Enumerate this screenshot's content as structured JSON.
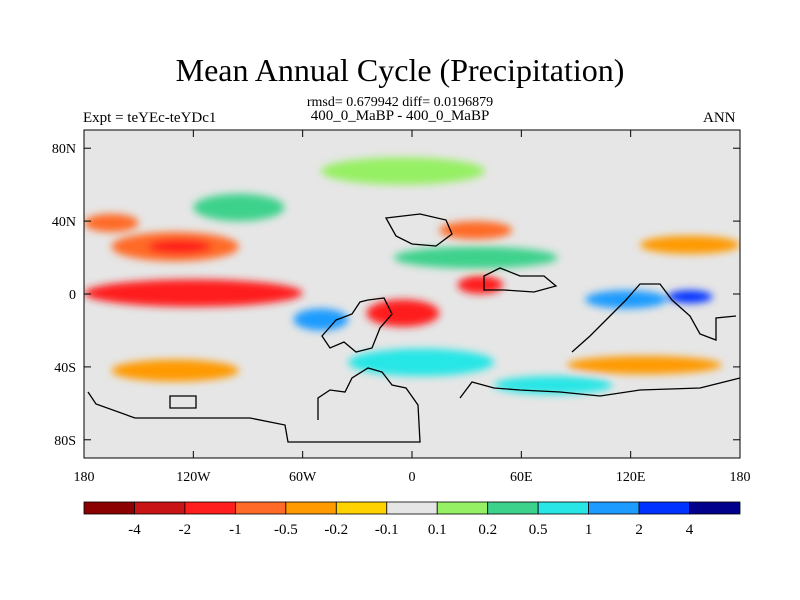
{
  "header": {
    "title": "Mean Annual Cycle (Precipitation)",
    "stats": "rmsd= 0.679942 diff= 0.0196879",
    "left_label": "Expt = teYEc-teYDc1",
    "center_label": "400_0_MaBP - 400_0_MaBP",
    "right_label": "ANN"
  },
  "chart_data": {
    "type": "heatmap",
    "title": "Mean Annual Cycle (Precipitation)",
    "xlabel": "",
    "ylabel": "",
    "xlim": [
      -180,
      180
    ],
    "ylim": [
      -90,
      90
    ],
    "x_ticks": [
      {
        "value": -180,
        "label": "180"
      },
      {
        "value": -120,
        "label": "120W"
      },
      {
        "value": -60,
        "label": "60W"
      },
      {
        "value": 0,
        "label": "0"
      },
      {
        "value": 60,
        "label": "60E"
      },
      {
        "value": 120,
        "label": "120E"
      },
      {
        "value": 180,
        "label": "180"
      }
    ],
    "y_ticks": [
      {
        "value": 80,
        "label": "80N"
      },
      {
        "value": 40,
        "label": "40N"
      },
      {
        "value": 0,
        "label": "0"
      },
      {
        "value": -40,
        "label": "40S"
      },
      {
        "value": -80,
        "label": "80S"
      }
    ],
    "colorbar": {
      "levels": [
        "-4",
        "-2",
        "-1",
        "-0.5",
        "-0.2",
        "-0.1",
        "0.1",
        "0.2",
        "0.5",
        "1",
        "2",
        "4"
      ],
      "colors": [
        "#8b0000",
        "#c81414",
        "#ff1e1e",
        "#ff6a28",
        "#ff9a00",
        "#ffd200",
        "#e6e6e6",
        "#96f064",
        "#3cd28c",
        "#28e6e6",
        "#1e9bff",
        "#0032ff",
        "#00008c"
      ]
    },
    "field_regions": [
      {
        "name": "tropical-pacific-drying-core",
        "bin": 1,
        "lon": [
          -165,
          -80
        ],
        "lat": [
          -3,
          4
        ]
      },
      {
        "name": "tropical-pacific-drying",
        "bin": 2,
        "lon": [
          -180,
          -60
        ],
        "lat": [
          -7,
          8
        ]
      },
      {
        "name": "north-pacific-drying",
        "bin": 3,
        "lon": [
          -165,
          -95
        ],
        "lat": [
          18,
          34
        ]
      },
      {
        "name": "north-pacific-drying-core",
        "bin": 2,
        "lon": [
          -145,
          -110
        ],
        "lat": [
          22,
          30
        ]
      },
      {
        "name": "west-pacific-40n-drying",
        "bin": 3,
        "lon": [
          -180,
          -150
        ],
        "lat": [
          34,
          44
        ]
      },
      {
        "name": "atlantic-drying",
        "bin": 2,
        "lon": [
          -25,
          15
        ],
        "lat": [
          -18,
          -3
        ]
      },
      {
        "name": "indian-ocean-drying",
        "bin": 2,
        "lon": [
          25,
          50
        ],
        "lat": [
          0,
          10
        ]
      },
      {
        "name": "east-asia-drying",
        "bin": 3,
        "lon": [
          15,
          55
        ],
        "lat": [
          30,
          40
        ]
      },
      {
        "name": "north-pacific-west-drying",
        "bin": 4,
        "lon": [
          125,
          180
        ],
        "lat": [
          22,
          32
        ]
      },
      {
        "name": "southern-ocean-drying",
        "bin": 4,
        "lon": [
          85,
          170
        ],
        "lat": [
          -44,
          -34
        ]
      },
      {
        "name": "south-pacific-drying",
        "bin": 4,
        "lon": [
          -165,
          -95
        ],
        "lat": [
          -48,
          -36
        ]
      },
      {
        "name": "equatorial-west-pacific-wet",
        "bin": 11,
        "lon": [
          140,
          165
        ],
        "lat": [
          -5,
          2
        ]
      },
      {
        "name": "maritime-continent-wet",
        "bin": 10,
        "lon": [
          95,
          140
        ],
        "lat": [
          -8,
          2
        ]
      },
      {
        "name": "east-pacific-wet",
        "bin": 10,
        "lon": [
          -65,
          -35
        ],
        "lat": [
          -20,
          -8
        ]
      },
      {
        "name": "south-atlantic-wet",
        "bin": 9,
        "lon": [
          -35,
          45
        ],
        "lat": [
          -45,
          -30
        ]
      },
      {
        "name": "south-indian-wet",
        "bin": 9,
        "lon": [
          45,
          110
        ],
        "lat": [
          -55,
          -45
        ]
      },
      {
        "name": "north-america-wet",
        "bin": 8,
        "lon": [
          -120,
          -70
        ],
        "lat": [
          40,
          55
        ]
      },
      {
        "name": "north-atlantic-wet",
        "bin": 8,
        "lon": [
          -10,
          80
        ],
        "lat": [
          14,
          26
        ]
      },
      {
        "name": "arctic-wet",
        "bin": 7,
        "lon": [
          -50,
          40
        ],
        "lat": [
          60,
          75
        ]
      }
    ],
    "land_outline": "coarse-grid paleogeography (black contour)"
  }
}
